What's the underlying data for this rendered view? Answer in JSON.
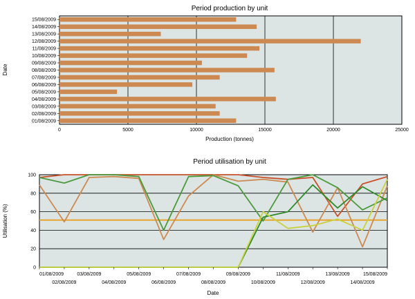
{
  "chart_data": [
    {
      "type": "bar",
      "orientation": "horizontal",
      "title": "Period production by unit",
      "xlabel": "Production (tonnes)",
      "ylabel": "Date",
      "xlim": [
        0,
        25000
      ],
      "xticks": [
        "0",
        "5000",
        "10000",
        "15000",
        "20000",
        "25000"
      ],
      "grid": "vertical",
      "colors": {
        "bar": "#cc8a52",
        "plot_bg": "#dde4e4"
      },
      "categories": [
        "01/08/2009",
        "02/08/2009",
        "03/08/2009",
        "04/08/2009",
        "05/08/2009",
        "06/08/2009",
        "07/08/2009",
        "08/08/2009",
        "09/08/2009",
        "10/08/2009",
        "11/08/2009",
        "12/08/2009",
        "13/08/2009",
        "14/08/2009",
        "15/08/2009"
      ],
      "values": [
        12900,
        11700,
        11400,
        15800,
        4200,
        9700,
        11700,
        15700,
        10400,
        13700,
        14600,
        22000,
        7400,
        14400,
        12900
      ]
    },
    {
      "type": "line",
      "title": "Period utilisation by unit",
      "xlabel": "Date",
      "ylabel": "Utilisation (%)",
      "ylim": [
        0,
        100
      ],
      "yticks": [
        "0",
        "20",
        "40",
        "60",
        "80",
        "100"
      ],
      "grid": "horizontal",
      "plot_bg": "#dde4e4",
      "categories": [
        "01/08/2009",
        "02/08/2009",
        "03/08/2009",
        "04/08/2009",
        "05/08/2009",
        "06/08/2009",
        "07/08/2009",
        "08/08/2009",
        "09/08/2009",
        "10/08/2009",
        "11/08/2009",
        "12/08/2009",
        "13/08/2009",
        "14/08/2009",
        "15/08/2009"
      ],
      "series": [
        {
          "color": "#e8a020",
          "values": [
            51,
            51,
            51,
            51,
            51,
            51,
            51,
            51,
            51,
            51,
            51,
            51,
            51,
            51,
            51
          ]
        },
        {
          "color": "#c85028",
          "values": [
            97,
            100,
            100,
            100,
            100,
            100,
            100,
            100,
            100,
            97,
            95,
            97,
            55,
            90,
            98
          ]
        },
        {
          "color": "#cc8a52",
          "values": [
            89,
            49,
            97,
            98,
            96,
            30,
            77,
            100,
            93,
            95,
            92,
            38,
            86,
            22,
            88
          ]
        },
        {
          "color": "#4a9a3c",
          "values": [
            97,
            91,
            100,
            100,
            98,
            40,
            98,
            99,
            88,
            50,
            95,
            100,
            86,
            62,
            75
          ]
        },
        {
          "color": "#2e8a2a",
          "values": [
            0,
            0,
            0,
            0,
            0,
            0,
            0,
            0,
            0,
            54,
            60,
            89,
            64,
            87,
            72
          ]
        },
        {
          "color": "#c8d23c",
          "values": [
            0,
            0,
            0,
            0,
            0,
            0,
            0,
            0,
            0,
            60,
            42,
            45,
            52,
            40,
            95
          ]
        }
      ]
    }
  ]
}
